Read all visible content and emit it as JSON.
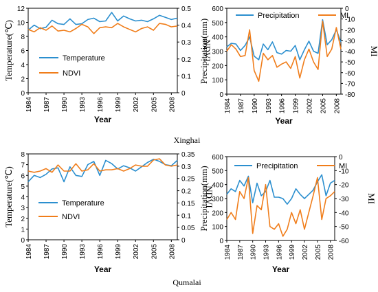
{
  "chart_data": [
    {
      "id": "xinghai-temp-ndvi",
      "type": "line",
      "group_label": "Xinghai",
      "x": [
        1984,
        1985,
        1986,
        1987,
        1988,
        1989,
        1990,
        1991,
        1992,
        1993,
        1994,
        1995,
        1996,
        1997,
        1998,
        1999,
        2000,
        2001,
        2002,
        2003,
        2004,
        2005,
        2006,
        2007,
        2008,
        2009
      ],
      "xticks": [
        "1984",
        "1987",
        "1990",
        "1993",
        "1996",
        "1999",
        "2002",
        "2005",
        "2008"
      ],
      "xlabel": "Year",
      "ylabel_left": "Temperature(℃)",
      "ylabel_right": "NDVI",
      "ylim_left": [
        0,
        12
      ],
      "yticks_left": [
        "0",
        "2",
        "4",
        "6",
        "8",
        "10",
        "12"
      ],
      "ylim_right": [
        0,
        0.5
      ],
      "yticks_right": [
        "0",
        "0.1",
        "0.2",
        "0.3",
        "0.4",
        "0.5"
      ],
      "legend_position": "middle-center",
      "series": [
        {
          "name": "Temperature",
          "axis": "left",
          "color": "#2b8fcf",
          "values": [
            8.9,
            9.6,
            9.1,
            9.3,
            10.3,
            9.8,
            9.7,
            10.5,
            9.7,
            9.8,
            10.4,
            10.6,
            10.1,
            10.2,
            11.4,
            10.2,
            10.9,
            10.5,
            10.2,
            10.3,
            10.1,
            10.5,
            11.0,
            10.7,
            10.4,
            10.6
          ]
        },
        {
          "name": "NDVI",
          "axis": "right",
          "color": "#f07d1a",
          "values": [
            0.375,
            0.36,
            0.385,
            0.37,
            0.395,
            0.365,
            0.37,
            0.36,
            0.38,
            0.405,
            0.39,
            0.35,
            0.385,
            0.39,
            0.385,
            0.41,
            0.39,
            0.375,
            0.36,
            0.38,
            0.39,
            0.37,
            0.41,
            0.405,
            0.39,
            0.395
          ]
        }
      ]
    },
    {
      "id": "xinghai-precip-mi",
      "type": "line",
      "group_label": "Xinghai",
      "x": [
        1984,
        1985,
        1986,
        1987,
        1988,
        1989,
        1990,
        1991,
        1992,
        1993,
        1994,
        1995,
        1996,
        1997,
        1998,
        1999,
        2000,
        2001,
        2002,
        2003,
        2004,
        2005,
        2006,
        2007,
        2008,
        2009
      ],
      "xticks": [
        "1984",
        "1987",
        "1990",
        "1993",
        "1996",
        "1999",
        "2002",
        "2005",
        "2008"
      ],
      "xlabel": "Year",
      "ylabel_left": "Precipitation(mm)",
      "ylabel_right": "MI",
      "ylim_left": [
        0,
        600
      ],
      "yticks_left": [
        "0",
        "100",
        "200",
        "300",
        "400",
        "500",
        "600"
      ],
      "ylim_right": [
        -80,
        0
      ],
      "yticks_right": [
        "0",
        "-10",
        "-20",
        "-30",
        "-40",
        "-50",
        "-60",
        "-70",
        "-80"
      ],
      "legend_position": "top-center",
      "series": [
        {
          "name": "Precipitation",
          "axis": "left",
          "color": "#2b8fcf",
          "values": [
            330,
            355,
            350,
            305,
            340,
            400,
            265,
            240,
            350,
            310,
            365,
            290,
            280,
            305,
            300,
            340,
            240,
            310,
            370,
            300,
            285,
            520,
            345,
            380,
            450,
            365
          ]
        },
        {
          "name": "MI",
          "axis": "right",
          "color": "#f07d1a",
          "values": [
            -40,
            -34,
            -38,
            -45,
            -44,
            -20,
            -58,
            -68,
            -42,
            -48,
            -44,
            -55,
            -52,
            -50,
            -56,
            -45,
            -65,
            -48,
            -38,
            -50,
            -57,
            -12,
            -45,
            -38,
            -18,
            -38
          ]
        }
      ]
    },
    {
      "id": "qumalai-temp-ndvi",
      "type": "line",
      "group_label": "Qumalai",
      "x": [
        1984,
        1985,
        1986,
        1987,
        1988,
        1989,
        1990,
        1991,
        1992,
        1993,
        1994,
        1995,
        1996,
        1997,
        1998,
        1999,
        2000,
        2001,
        2002,
        2003,
        2004,
        2005,
        2006,
        2007,
        2008,
        2009
      ],
      "xticks": [
        "1984",
        "1987",
        "1990",
        "1993",
        "1996",
        "1999",
        "2002",
        "2005",
        "2008"
      ],
      "xlabel": "Year",
      "ylabel_left": "Temperature(℃)",
      "ylabel_right": "NDVI",
      "ylim_left": [
        0,
        8
      ],
      "yticks_left": [
        "0",
        "1",
        "2",
        "3",
        "4",
        "5",
        "6",
        "7",
        "8"
      ],
      "ylim_right": [
        0,
        0.35
      ],
      "yticks_right": [
        "0",
        "0.05",
        "0.1",
        "0.15",
        "0.2",
        "0.25",
        "0.3",
        "0.35"
      ],
      "legend_position": "center-left",
      "series": [
        {
          "name": "Temperature",
          "axis": "left",
          "color": "#2b8fcf",
          "values": [
            5.4,
            6.0,
            5.8,
            6.1,
            6.6,
            6.7,
            5.4,
            6.8,
            6.0,
            5.9,
            7.0,
            7.3,
            6.0,
            7.4,
            7.1,
            6.6,
            6.9,
            6.7,
            6.4,
            6.8,
            7.2,
            7.5,
            7.3,
            7.0,
            6.9,
            7.4
          ]
        },
        {
          "name": "NDVI",
          "axis": "right",
          "color": "#f07d1a",
          "values": [
            0.28,
            0.275,
            0.28,
            0.29,
            0.275,
            0.305,
            0.28,
            0.28,
            0.31,
            0.28,
            0.285,
            0.31,
            0.28,
            0.285,
            0.285,
            0.29,
            0.28,
            0.29,
            0.305,
            0.3,
            0.3,
            0.325,
            0.33,
            0.305,
            0.3,
            0.305
          ]
        }
      ]
    },
    {
      "id": "qumalai-precip-mi",
      "type": "line",
      "group_label": "Qumalai",
      "x": [
        1984,
        1985,
        1986,
        1987,
        1988,
        1989,
        1990,
        1991,
        1992,
        1993,
        1994,
        1995,
        1996,
        1997,
        1998,
        1999,
        2000,
        2001,
        2002,
        2003,
        2004,
        2005,
        2006,
        2007,
        2008,
        2009
      ],
      "xticks": [
        "1984",
        "1987",
        "1990",
        "1993",
        "1996",
        "1999",
        "2002",
        "2005",
        "2008"
      ],
      "xlabel": "Year",
      "ylabel_left": "Precipitation(mm)",
      "ylabel_right": "MI",
      "ylim_left": [
        0,
        600
      ],
      "yticks_left": [
        "0",
        "100",
        "200",
        "300",
        "400",
        "500",
        "600"
      ],
      "ylim_right": [
        -60,
        0
      ],
      "yticks_right": [
        "0",
        "-10",
        "-20",
        "-30",
        "-40",
        "-50",
        "-60"
      ],
      "legend_position": "top-center",
      "series": [
        {
          "name": "Precipitation",
          "axis": "left",
          "color": "#2b8fcf",
          "values": [
            330,
            370,
            350,
            430,
            390,
            460,
            270,
            410,
            320,
            350,
            430,
            310,
            310,
            300,
            260,
            300,
            370,
            330,
            300,
            330,
            360,
            420,
            470,
            320,
            410,
            430
          ]
        },
        {
          "name": "MI",
          "axis": "right",
          "color": "#f07d1a",
          "values": [
            -45,
            -40,
            -45,
            -25,
            -30,
            -15,
            -55,
            -35,
            -38,
            -20,
            -50,
            -52,
            -48,
            -57,
            -52,
            -40,
            -48,
            -38,
            -52,
            -40,
            -28,
            -15,
            -45,
            -30,
            -28,
            -25
          ]
        }
      ]
    }
  ]
}
